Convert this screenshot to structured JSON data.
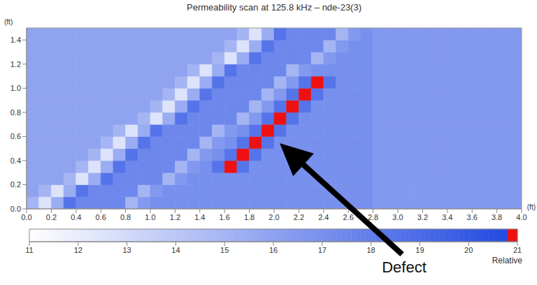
{
  "chart_data": {
    "type": "heatmap",
    "title": "Permeability scan at 125.8 kHz – nde-23(3)",
    "x_label": "(ft)",
    "y_label": "(ft)",
    "xlim": [
      0,
      4
    ],
    "xticks": [
      {
        "value": 0,
        "label": "0.0"
      },
      0.2,
      0.4,
      0.6,
      0.8,
      {
        "value": 1,
        "label": "1.0"
      },
      1.2,
      1.4,
      1.6,
      1.8,
      {
        "value": 2,
        "label": "2.0"
      },
      2.2,
      2.4,
      2.6,
      2.8,
      {
        "value": 3,
        "label": "3.0"
      },
      3.2,
      3.4,
      3.6,
      3.8,
      {
        "value": 4,
        "label": "4.0"
      }
    ],
    "ylim": [
      0,
      1.5
    ],
    "yticks": [
      {
        "value": 0,
        "label": "0.0"
      },
      0.2,
      0.4,
      0.6,
      0.8,
      {
        "value": 1,
        "label": "1.0"
      },
      1.2,
      1.4
    ],
    "x_bins": [
      0,
      0.1,
      0.2,
      0.3,
      0.4,
      0.5,
      0.6,
      0.7,
      0.8,
      0.9,
      1,
      1.1,
      1.2,
      1.3,
      1.4,
      1.5,
      1.6,
      1.7,
      1.8,
      1.9,
      2,
      2.1,
      2.2,
      2.3,
      2.4,
      2.5,
      2.6,
      2.7,
      2.8,
      2.9,
      3,
      3.1,
      3.2,
      3.3,
      3.4,
      3.5,
      3.6,
      3.7,
      3.8,
      3.9,
      4
    ],
    "y_bins": [
      0,
      0.1,
      0.2,
      0.3,
      0.4,
      0.5,
      0.6,
      0.7,
      0.8,
      0.9,
      1,
      1.1,
      1.2,
      1.3,
      1.4,
      1.5
    ],
    "cells": [
      [
        15,
        12.5,
        15.5,
        18.5,
        17.5,
        17.5,
        17.5,
        17.5,
        15,
        16.5,
        17,
        17,
        17,
        17,
        17,
        17,
        17,
        17,
        17,
        17,
        17,
        17,
        17,
        17,
        17,
        17,
        17,
        17,
        16.5,
        16.5,
        16.5,
        16.5,
        16.5,
        16.5,
        16.5,
        16.5,
        16.5,
        16.5,
        16.5,
        16.5
      ],
      [
        16,
        15,
        12.5,
        15.5,
        18.5,
        17.5,
        17.5,
        17.5,
        17.5,
        15,
        16.5,
        17,
        17,
        17,
        17,
        17,
        17,
        17,
        17,
        17,
        17,
        17,
        17,
        17,
        17,
        17,
        17,
        17,
        16.5,
        16.5,
        16.5,
        16.5,
        16.5,
        16.5,
        16.5,
        16.5,
        16.5,
        16.5,
        16.5,
        16.5
      ],
      [
        16,
        16,
        16,
        15,
        12.5,
        15.5,
        18.5,
        17.5,
        17.5,
        17.5,
        17.5,
        15,
        16.5,
        17,
        17,
        17,
        17,
        17,
        17,
        17,
        17,
        17,
        17,
        17,
        17,
        17,
        17,
        17,
        16.5,
        16.5,
        16.5,
        16.5,
        16.5,
        16.5,
        16.5,
        16.5,
        16.5,
        16.5,
        16.5,
        16.5
      ],
      [
        16,
        16,
        16,
        16,
        15,
        12.5,
        15.5,
        18.5,
        17.5,
        17.5,
        17.5,
        17.5,
        15,
        16.5,
        17,
        18.5,
        21,
        18.5,
        17,
        17,
        17,
        17,
        17,
        17,
        17,
        17,
        17,
        17,
        16.5,
        16.5,
        16.5,
        16.5,
        16.5,
        16.5,
        16.5,
        16.5,
        16.5,
        16.5,
        16.5,
        16.5
      ],
      [
        16,
        16,
        16,
        16,
        16,
        15,
        12.5,
        15.5,
        18.5,
        17.5,
        17.5,
        17.5,
        17.5,
        15,
        16.5,
        17,
        18.5,
        21,
        18.5,
        17,
        17,
        17,
        17,
        17,
        17,
        17,
        17,
        17,
        16.5,
        16.5,
        16.5,
        16.5,
        16.5,
        16.5,
        16.5,
        16.5,
        16.5,
        16.5,
        16.5,
        16.5
      ],
      [
        16,
        16,
        16,
        16,
        16,
        16,
        15,
        12.5,
        15.5,
        18.5,
        17.5,
        17.5,
        17.5,
        17.5,
        15,
        16.5,
        17,
        18.5,
        21,
        18.5,
        17,
        17,
        17,
        17,
        17,
        17,
        17,
        17,
        16.5,
        16.5,
        16.5,
        16.5,
        16.5,
        16.5,
        16.5,
        16.5,
        16.5,
        16.5,
        16.5,
        16.5
      ],
      [
        16,
        16,
        16,
        16,
        16,
        16,
        16,
        15,
        12.5,
        15.5,
        18.5,
        17.5,
        17.5,
        17.5,
        17.5,
        15,
        16.5,
        17,
        18.5,
        21,
        18.5,
        17,
        17,
        17,
        17,
        17,
        17,
        17,
        16.5,
        16.5,
        16.5,
        16.5,
        16.5,
        16.5,
        16.5,
        16.5,
        16.5,
        16.5,
        16.5,
        16.5
      ],
      [
        16,
        16,
        16,
        16,
        16,
        16,
        16,
        16,
        16,
        15,
        12.5,
        15.5,
        18.5,
        17.5,
        17.5,
        17.5,
        17.5,
        15,
        16.5,
        18.5,
        21,
        18.5,
        17,
        17,
        17,
        17,
        17,
        17,
        16.5,
        16.5,
        16.5,
        16.5,
        16.5,
        16.5,
        16.5,
        16.5,
        16.5,
        16.5,
        16.5,
        16.5
      ],
      [
        16,
        16,
        16,
        16,
        16,
        16,
        16,
        16,
        16,
        16,
        15,
        12.5,
        15.5,
        18.5,
        17.5,
        17.5,
        17.5,
        17.5,
        15,
        16.5,
        18.5,
        21,
        18.5,
        17,
        17,
        17,
        17,
        17,
        16.5,
        16.5,
        16.5,
        16.5,
        16.5,
        16.5,
        16.5,
        16.5,
        16.5,
        16.5,
        16.5,
        16.5
      ],
      [
        16,
        16,
        16,
        16,
        16,
        16,
        16,
        16,
        16,
        16,
        16,
        15,
        12.5,
        15.5,
        18.5,
        17.5,
        17.5,
        17.5,
        17.5,
        15,
        16.5,
        18.5,
        21,
        18.5,
        17,
        17,
        17,
        17,
        16.5,
        16.5,
        16.5,
        16.5,
        16.5,
        16.5,
        16.5,
        16.5,
        16.5,
        16.5,
        16.5,
        16.5
      ],
      [
        16,
        16,
        16,
        16,
        16,
        16,
        16,
        16,
        16,
        16,
        16,
        16,
        15,
        12.5,
        15.5,
        18.5,
        17.5,
        17.5,
        17.5,
        17.5,
        15,
        16.5,
        18.5,
        21,
        18.5,
        17,
        17,
        17,
        16.5,
        16.5,
        16.5,
        16.5,
        16.5,
        16.5,
        16.5,
        16.5,
        16.5,
        16.5,
        16.5,
        16.5
      ],
      [
        16,
        16,
        16,
        16,
        16,
        16,
        16,
        16,
        16,
        16,
        16,
        16,
        16,
        15,
        12.5,
        15.5,
        18.5,
        17.5,
        17.5,
        17.5,
        17.5,
        15,
        16.5,
        17,
        17,
        17,
        17,
        17,
        16.5,
        16.5,
        16.5,
        16.5,
        16.5,
        16.5,
        16.5,
        16.5,
        16.5,
        16.5,
        16.5,
        16.5
      ],
      [
        16,
        16,
        16,
        16,
        16,
        16,
        16,
        16,
        16,
        16,
        16,
        16,
        16,
        16,
        16,
        15,
        12.5,
        15.5,
        18.5,
        17.5,
        17.5,
        17.5,
        17.5,
        15,
        16.5,
        17,
        17,
        17,
        16.5,
        16.5,
        16.5,
        16.5,
        16.5,
        16.5,
        16.5,
        16.5,
        16.5,
        16.5,
        16.5,
        16.5
      ],
      [
        16,
        16,
        16,
        16,
        16,
        16,
        16,
        16,
        16,
        16,
        16,
        16,
        16,
        16,
        16,
        16,
        15,
        12.5,
        15.5,
        18.5,
        17.5,
        17.5,
        17.5,
        17.5,
        15,
        16.5,
        17,
        17,
        16.5,
        16.5,
        16.5,
        16.5,
        16.5,
        16.5,
        16.5,
        16.5,
        16.5,
        16.5,
        16.5,
        16.5
      ],
      [
        16,
        16,
        16,
        16,
        16,
        16,
        16,
        16,
        16,
        16,
        16,
        16,
        16,
        16,
        16,
        16,
        16,
        15,
        12.5,
        15.5,
        18.5,
        17.5,
        17.5,
        17.5,
        17.5,
        15,
        16.5,
        17,
        16.5,
        16.5,
        16.5,
        16.5,
        16.5,
        16.5,
        16.5,
        16.5,
        16.5,
        16.5,
        16.5,
        16.5
      ]
    ],
    "colorbar": {
      "range": [
        11,
        21
      ],
      "ticks": [
        11,
        12,
        13,
        14,
        15,
        16,
        17,
        18,
        19,
        20,
        21
      ],
      "label": "Relative"
    },
    "annotations": [
      {
        "text": "Defect"
      }
    ]
  }
}
